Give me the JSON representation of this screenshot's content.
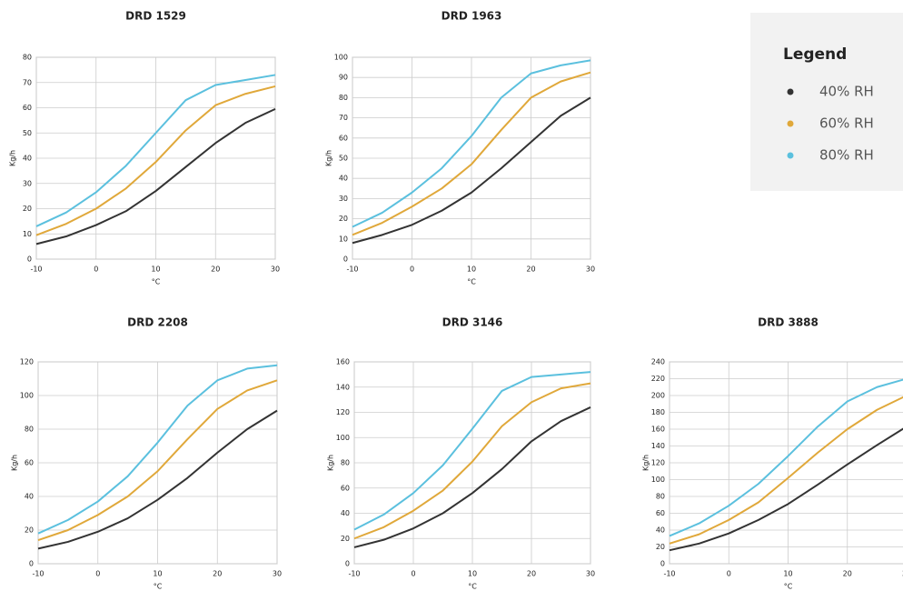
{
  "legend_title": "Legend",
  "chart_data": [
    {
      "type": "line",
      "title": "DRD 1529",
      "xlabel": "°C",
      "ylabel": "Kg/h",
      "grid": true,
      "x": [
        -10,
        -5,
        0,
        5,
        10,
        15,
        20,
        25,
        30
      ],
      "xlim": [
        -10,
        30
      ],
      "xticks": [
        -10,
        0,
        10,
        20,
        30
      ],
      "ylim": [
        0,
        80
      ],
      "yticks": [
        0,
        10,
        20,
        30,
        40,
        50,
        60,
        70,
        80
      ],
      "series": [
        {
          "name": "40% RH",
          "color": "#333333",
          "values": [
            6,
            9,
            13.5,
            19,
            27,
            36.5,
            46,
            54,
            59.5
          ]
        },
        {
          "name": "60% RH",
          "color": "#e0a83a",
          "values": [
            9.5,
            14,
            20,
            28,
            38.5,
            51,
            61,
            65.5,
            68.5
          ]
        },
        {
          "name": "80% RH",
          "color": "#5bc0de",
          "values": [
            13,
            18.5,
            26.5,
            37,
            50,
            63,
            69,
            71,
            73
          ]
        }
      ]
    },
    {
      "type": "line",
      "title": "DRD 1963",
      "xlabel": "°C",
      "ylabel": "Kg/h",
      "grid": true,
      "x": [
        -10,
        -5,
        0,
        5,
        10,
        15,
        20,
        25,
        30
      ],
      "xlim": [
        -10,
        30
      ],
      "xticks": [
        -10,
        0,
        10,
        20,
        30
      ],
      "ylim": [
        0,
        100
      ],
      "yticks": [
        0,
        10,
        20,
        30,
        40,
        50,
        60,
        70,
        80,
        90,
        100
      ],
      "series": [
        {
          "color": "#333333",
          "values": [
            8,
            12,
            17,
            24,
            33,
            45,
            58,
            71,
            80
          ]
        },
        {
          "color": "#e0a83a",
          "values": [
            12,
            18,
            26,
            35,
            47,
            64,
            80,
            88,
            92.5
          ]
        },
        {
          "color": "#5bc0de",
          "values": [
            16,
            23,
            33,
            45,
            61,
            80,
            92,
            96,
            98.5
          ]
        }
      ]
    },
    {
      "type": "line",
      "title": "DRD 2208",
      "xlabel": "°C",
      "ylabel": "Kg/h",
      "grid": true,
      "x": [
        -10,
        -5,
        0,
        5,
        10,
        15,
        20,
        25,
        30
      ],
      "xlim": [
        -10,
        30
      ],
      "xticks": [
        -10,
        0,
        10,
        20,
        30
      ],
      "ylim": [
        0,
        120
      ],
      "yticks": [
        0,
        20,
        40,
        60,
        80,
        100,
        120
      ],
      "series": [
        {
          "color": "#333333",
          "values": [
            9,
            13,
            19,
            27,
            38,
            51,
            66,
            80,
            91
          ]
        },
        {
          "color": "#e0a83a",
          "values": [
            14,
            20,
            29,
            40,
            55,
            74,
            92,
            103,
            109
          ]
        },
        {
          "color": "#5bc0de",
          "values": [
            18,
            26,
            37,
            52,
            72,
            94,
            109,
            116,
            118
          ]
        }
      ]
    },
    {
      "type": "line",
      "title": "DRD 3146",
      "xlabel": "°C",
      "ylabel": "Kg/h",
      "grid": true,
      "x": [
        -10,
        -5,
        0,
        5,
        10,
        15,
        20,
        25,
        30
      ],
      "xlim": [
        -10,
        30
      ],
      "xticks": [
        -10,
        0,
        10,
        20,
        30
      ],
      "ylim": [
        0,
        160
      ],
      "yticks": [
        0,
        20,
        40,
        60,
        80,
        100,
        120,
        140,
        160
      ],
      "series": [
        {
          "color": "#333333",
          "values": [
            13,
            19,
            28,
            40,
            56,
            75,
            97,
            113,
            124
          ]
        },
        {
          "color": "#e0a83a",
          "values": [
            20,
            29,
            42,
            58,
            81,
            109,
            128,
            139,
            143
          ]
        },
        {
          "color": "#5bc0de",
          "values": [
            27,
            39,
            56,
            78,
            107,
            137,
            148,
            150,
            152
          ]
        }
      ]
    },
    {
      "type": "line",
      "title": "DRD 3888",
      "xlabel": "°C",
      "ylabel": "Kg/h",
      "grid": true,
      "x": [
        -10,
        -5,
        0,
        5,
        10,
        15,
        20,
        25,
        30
      ],
      "xlim": [
        -10,
        30
      ],
      "xticks": [
        -10,
        0,
        10,
        20,
        30
      ],
      "ylim": [
        0,
        240
      ],
      "yticks": [
        0,
        20,
        40,
        60,
        80,
        100,
        120,
        140,
        160,
        180,
        200,
        220,
        240
      ],
      "series": [
        {
          "color": "#333333",
          "values": [
            16,
            24,
            36,
            52,
            71,
            94,
            118,
            141,
            163
          ]
        },
        {
          "color": "#e0a83a",
          "values": [
            24,
            35,
            52,
            73,
            102,
            132,
            160,
            183,
            200
          ]
        },
        {
          "color": "#5bc0de",
          "values": [
            33,
            48,
            69,
            95,
            128,
            163,
            193,
            210,
            220
          ]
        }
      ]
    }
  ]
}
